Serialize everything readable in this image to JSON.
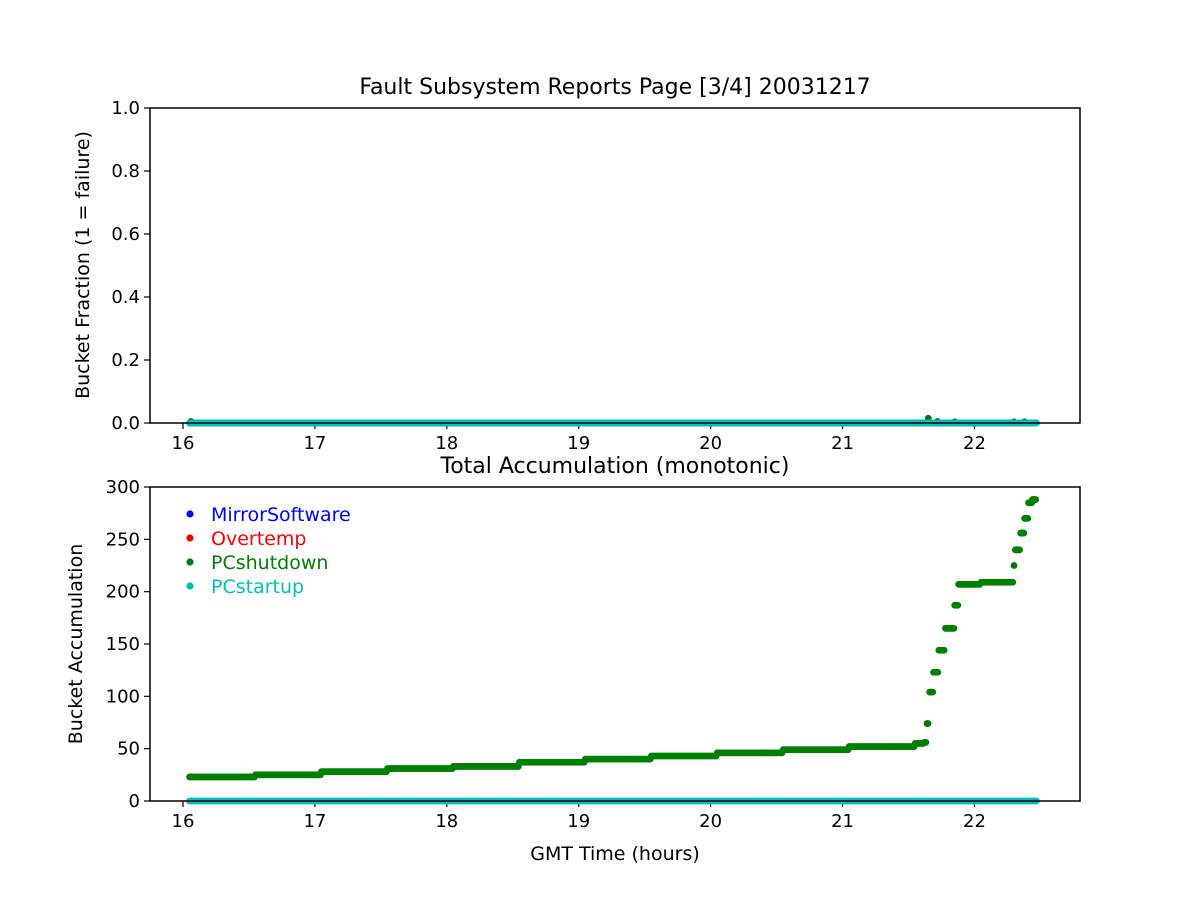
{
  "colors": {
    "MirrorSoftware": "#0000ff",
    "Overtemp": "#ff0000",
    "PCshutdown": "#008000",
    "PCstartup": "#00bfbf"
  },
  "chart_data": [
    {
      "type": "scatter",
      "title": "Fault Subsystem Reports Page [3/4] 20031217",
      "xlabel": "",
      "ylabel": "Bucket Fraction (1 = failure)",
      "xlim": [
        15.75,
        22.8
      ],
      "ylim": [
        0.0,
        1.0
      ],
      "xticks": [
        "16",
        "17",
        "18",
        "19",
        "20",
        "21",
        "22"
      ],
      "yticks": [
        "0.0",
        "0.2",
        "0.4",
        "0.6",
        "0.8",
        "1.0"
      ],
      "grid": false,
      "series": [
        {
          "name": "PCshutdown",
          "x_range": [
            16.05,
            22.47
          ],
          "baseline": 0.0,
          "points": [
            [
              16.06,
              0.005
            ],
            [
              21.65,
              0.015
            ],
            [
              21.72,
              0.005
            ],
            [
              21.85,
              0.004
            ],
            [
              22.3,
              0.004
            ],
            [
              22.38,
              0.004
            ]
          ]
        },
        {
          "name": "PCstartup",
          "x_range": [
            16.05,
            22.47
          ],
          "baseline": 0.0,
          "points": []
        }
      ]
    },
    {
      "type": "scatter",
      "title": "Total Accumulation (monotonic)",
      "xlabel": "GMT Time (hours)",
      "ylabel": "Bucket Accumulation",
      "xlim": [
        15.75,
        22.8
      ],
      "ylim": [
        0,
        300
      ],
      "xticks": [
        "16",
        "17",
        "18",
        "19",
        "20",
        "21",
        "22"
      ],
      "yticks": [
        "0",
        "50",
        "100",
        "150",
        "200",
        "250",
        "300"
      ],
      "grid": false,
      "legend": [
        "MirrorSoftware",
        "Overtemp",
        "PCshutdown",
        "PCstartup"
      ],
      "legend_position": "upper-left",
      "series": [
        {
          "name": "PCshutdown",
          "steps": [
            [
              16.05,
              23
            ],
            [
              16.55,
              25
            ],
            [
              17.05,
              28
            ],
            [
              17.55,
              31
            ],
            [
              18.05,
              33
            ],
            [
              18.55,
              37
            ],
            [
              19.05,
              40
            ],
            [
              19.55,
              43
            ],
            [
              20.05,
              46
            ],
            [
              20.55,
              49
            ],
            [
              21.05,
              52
            ],
            [
              21.55,
              55
            ],
            [
              21.62,
              56
            ]
          ],
          "rise": [
            [
              21.64,
              74
            ],
            [
              21.66,
              104
            ],
            [
              21.69,
              123
            ],
            [
              21.73,
              144
            ],
            [
              21.78,
              165
            ],
            [
              21.85,
              187
            ],
            [
              21.88,
              207
            ],
            [
              22.05,
              209
            ],
            [
              22.3,
              225
            ],
            [
              22.31,
              240
            ],
            [
              22.35,
              256
            ],
            [
              22.38,
              270
            ],
            [
              22.41,
              285
            ],
            [
              22.44,
              288
            ]
          ],
          "x_end": 22.47
        },
        {
          "name": "PCstartup",
          "x_range": [
            16.05,
            22.47
          ],
          "baseline": 0
        }
      ]
    }
  ]
}
